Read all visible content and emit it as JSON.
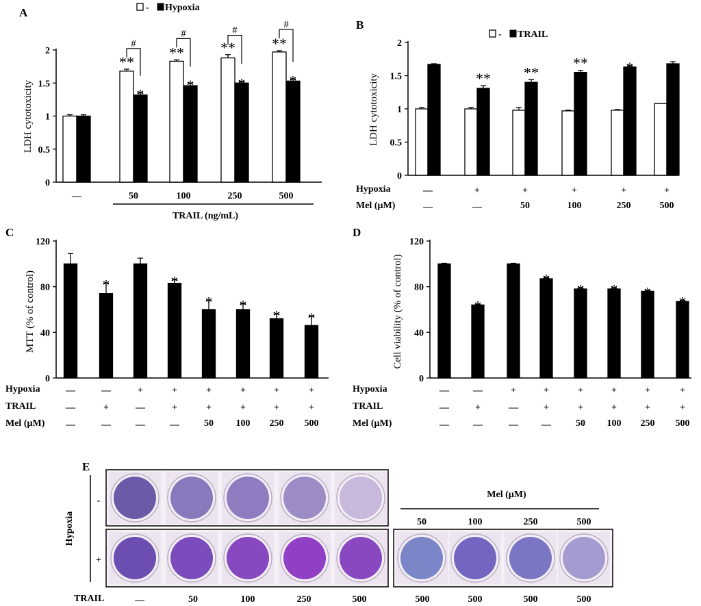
{
  "chart_data": [
    {
      "panel": "A",
      "type": "bar",
      "ylabel": "LDH cytotoxicity",
      "ylim": [
        0,
        2
      ],
      "yticks": [
        "0",
        "0.5",
        "1",
        "1.5",
        "2"
      ],
      "legend": [
        "-",
        "Hypoxia"
      ],
      "legend_position": "top",
      "categories": [
        "—",
        "50",
        "100",
        "250",
        "500"
      ],
      "xlabel": "TRAIL (ng/mL)",
      "series": [
        {
          "name": "-",
          "color": "#ffffff",
          "values": [
            1.0,
            1.68,
            1.83,
            1.88,
            1.97
          ],
          "errors": [
            0.02,
            0.03,
            0.02,
            0.05,
            0.02
          ],
          "marks": [
            "",
            "**",
            "**",
            "**",
            "**"
          ]
        },
        {
          "name": "Hypoxia",
          "color": "#000000",
          "values": [
            1.0,
            1.32,
            1.46,
            1.5,
            1.53
          ],
          "errors": [
            0.02,
            0.03,
            0.03,
            0.02,
            0.03
          ],
          "marks": [
            "",
            "*",
            "*",
            "*",
            "*"
          ]
        }
      ],
      "bracket_marks": [
        "",
        "#",
        "#",
        "#",
        "#"
      ]
    },
    {
      "panel": "B",
      "type": "bar",
      "ylabel": "LDH cytotoxicity",
      "ylim": [
        0,
        2
      ],
      "yticks": [
        "0",
        "0.5",
        "1",
        "1.5",
        "2"
      ],
      "legend": [
        "-",
        "TRAIL"
      ],
      "legend_position": "top",
      "rows": [
        {
          "label": "Hypoxia",
          "values": [
            "—",
            "+",
            "+",
            "+",
            "+",
            "+"
          ]
        },
        {
          "label": "Mel (µM)",
          "values": [
            "—",
            "—",
            "50",
            "100",
            "250",
            "500"
          ]
        }
      ],
      "series": [
        {
          "name": "-",
          "color": "#ffffff",
          "values": [
            1.0,
            1.0,
            0.98,
            0.97,
            0.98,
            1.08
          ],
          "errors": [
            0.02,
            0.02,
            0.04,
            0.01,
            0.01,
            0.0
          ],
          "marks": [
            "",
            "",
            "",
            "",
            "",
            ""
          ]
        },
        {
          "name": "TRAIL",
          "color": "#000000",
          "values": [
            1.67,
            1.31,
            1.4,
            1.55,
            1.63,
            1.68
          ],
          "errors": [
            0.01,
            0.04,
            0.04,
            0.03,
            0.02,
            0.03
          ],
          "marks": [
            "",
            "**",
            "**",
            "**",
            "*",
            ""
          ]
        }
      ]
    },
    {
      "panel": "C",
      "type": "bar",
      "ylabel": "MTT (% of control)",
      "ylim": [
        0,
        120
      ],
      "yticks": [
        "0",
        "40",
        "80",
        "120"
      ],
      "rows": [
        {
          "label": "Hypoxia",
          "values": [
            "—",
            "—",
            "+",
            "+",
            "+",
            "+",
            "+",
            "+"
          ]
        },
        {
          "label": "TRAIL",
          "values": [
            "—",
            "+",
            "—",
            "+",
            "+",
            "+",
            "+",
            "+"
          ]
        },
        {
          "label": "Mel (µM)",
          "values": [
            "—",
            "—",
            "—",
            "—",
            "50",
            "100",
            "250",
            "500"
          ]
        }
      ],
      "series": [
        {
          "name": "",
          "color": "#000000",
          "values": [
            100,
            74,
            100,
            83,
            60,
            60,
            52,
            46
          ],
          "errors": [
            9,
            9,
            5,
            3,
            8,
            5,
            4,
            8
          ],
          "marks": [
            "",
            "*",
            "",
            "*",
            "*",
            "*",
            "*",
            "*"
          ]
        }
      ]
    },
    {
      "panel": "D",
      "type": "bar",
      "ylabel": "Cell viability (% of control)",
      "ylim": [
        0,
        120
      ],
      "yticks": [
        "0",
        "40",
        "80",
        "120"
      ],
      "rows": [
        {
          "label": "Hypoxia",
          "values": [
            "—",
            "—",
            "+",
            "+",
            "+",
            "+",
            "+",
            "+"
          ]
        },
        {
          "label": "TRAIL",
          "values": [
            "—",
            "+",
            "—",
            "+",
            "+",
            "+",
            "+",
            "+"
          ]
        },
        {
          "label": "Mel (µM)",
          "values": [
            "—",
            "—",
            "—",
            "—",
            "50",
            "100",
            "250",
            "500"
          ]
        }
      ],
      "series": [
        {
          "name": "",
          "color": "#000000",
          "values": [
            100,
            64,
            100,
            87,
            78,
            78,
            76,
            67
          ],
          "errors": [
            0.5,
            0.5,
            0.5,
            1,
            1,
            1,
            0.5,
            1
          ],
          "marks": [
            "",
            "*",
            "",
            "*",
            "*",
            "*",
            "*",
            "*"
          ]
        }
      ]
    }
  ],
  "panel_e": {
    "label": "E",
    "side_label": "Hypoxia",
    "row_labels": [
      "-",
      "+"
    ],
    "mel_label": "Mel (µM)",
    "mel_values": [
      "50",
      "100",
      "250",
      "500"
    ],
    "trail_label": "TRAIL",
    "trail_values": [
      "—",
      "50",
      "100",
      "250",
      "500",
      "500",
      "500",
      "500",
      "500"
    ],
    "colors": {
      "left_top": [
        "#6a5aa8",
        "#8a78bc",
        "#8e7bc0",
        "#9d8bc6",
        "#c8b8dc"
      ],
      "left_bottom": [
        "#6c4eb0",
        "#7b4cbc",
        "#8848c0",
        "#9040c4",
        "#8a48c0"
      ],
      "right": [
        "#7a86c8",
        "#7466c0",
        "#7a76c4",
        "#a49cd0"
      ]
    }
  }
}
